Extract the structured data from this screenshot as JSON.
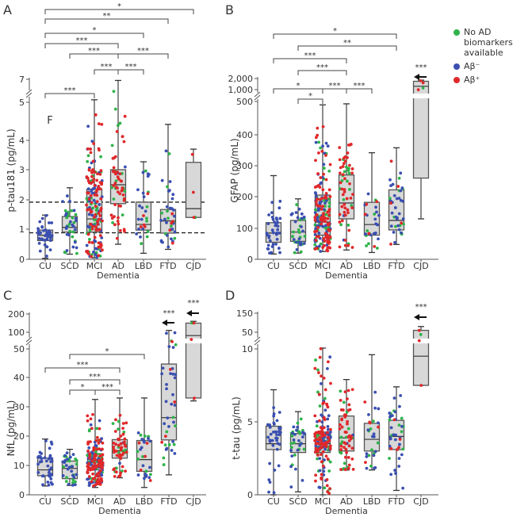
{
  "colors": {
    "no_biomarker": "#2fb34a",
    "abeta_neg": "#3a4fb0",
    "abeta_pos": "#e0282a",
    "box_fill": "#d8d8d8",
    "box_stroke": "#555555"
  },
  "legend": {
    "items": [
      {
        "key": "no_biomarker",
        "label_line1": "No AD biomarkers",
        "label_line2": "available"
      },
      {
        "key": "abeta_neg",
        "label_line1": "Aβ⁻",
        "label_line2": ""
      },
      {
        "key": "abeta_pos",
        "label_line1": "Aβ⁺",
        "label_line2": ""
      }
    ]
  },
  "chart_data": [
    {
      "panel": "A",
      "type": "box",
      "ylabel": "p-tau181 (pg/mL)",
      "xlabel": "Dementia",
      "categories": [
        "CU",
        "SCD",
        "MCI",
        "AD",
        "LBD",
        "FTD",
        "CJD"
      ],
      "yticks": [
        0,
        1,
        2,
        3,
        4,
        5,
        7
      ],
      "ytick_labels": [
        "0",
        "1",
        "2",
        "3",
        "4",
        "5",
        "7"
      ],
      "axis_break": [
        5.5,
        6.5
      ],
      "annotation_text": "F",
      "reference_lines": [
        1.92,
        0.88
      ],
      "boxes": [
        {
          "min": 0.03,
          "q1": 0.62,
          "median": 0.8,
          "q3": 0.97,
          "max": 1.48
        },
        {
          "min": 0.17,
          "q1": 0.9,
          "median": 1.06,
          "q3": 1.43,
          "max": 2.4
        },
        {
          "min": 0.05,
          "q1": 0.9,
          "median": 1.35,
          "q3": 2.35,
          "max": 5.22
        },
        {
          "min": 0.5,
          "q1": 1.87,
          "median": 2.5,
          "q3": 3.0,
          "max": 6.9
        },
        {
          "min": 0.2,
          "q1": 0.97,
          "median": 1.16,
          "q3": 1.92,
          "max": 3.27
        },
        {
          "min": 0.33,
          "q1": 0.87,
          "median": 1.28,
          "q3": 1.67,
          "max": 4.42
        },
        {
          "min": 1.4,
          "q1": 1.4,
          "median": 1.7,
          "q3": 3.25,
          "max": 3.7
        }
      ],
      "brackets": [
        {
          "from": "CU",
          "to": "CJD",
          "label": "*"
        },
        {
          "from": "CU",
          "to": "FTD",
          "label": "**"
        },
        {
          "from": "CU",
          "to": "LBD",
          "label": "*"
        },
        {
          "from": "CU",
          "to": "AD",
          "label": "***"
        },
        {
          "from": "SCD",
          "to": "AD",
          "label": "***"
        },
        {
          "from": "AD",
          "to": "FTD",
          "label": "***"
        },
        {
          "from": "MCI",
          "to": "AD",
          "label": "***"
        },
        {
          "from": "AD",
          "to": "LBD",
          "label": "***"
        },
        {
          "from": "CU",
          "to": "MCI",
          "label": "***"
        }
      ],
      "outlier_marks": []
    },
    {
      "panel": "B",
      "type": "box",
      "ylabel": "GFAP (pg/mL)",
      "xlabel": "Dementia",
      "categories": [
        "CU",
        "SCD",
        "MCI",
        "AD",
        "LBD",
        "FTD",
        "CJD"
      ],
      "yticks": [
        0,
        100,
        200,
        300,
        400,
        500,
        1000,
        2000
      ],
      "ytick_labels": [
        "0",
        "100",
        "200",
        "300",
        "400",
        "500",
        "1,000",
        "2,000"
      ],
      "axis_break": [
        500,
        1000
      ],
      "boxes": [
        {
          "min": 17,
          "q1": 55,
          "median": 85,
          "q3": 118,
          "max": 268
        },
        {
          "min": 20,
          "q1": 58,
          "median": 88,
          "q3": 125,
          "max": 193
        },
        {
          "min": 25,
          "q1": 78,
          "median": 120,
          "q3": 205,
          "max": 490
        },
        {
          "min": 30,
          "q1": 130,
          "median": 180,
          "q3": 270,
          "max": 493
        },
        {
          "min": 22,
          "q1": 78,
          "median": 112,
          "q3": 182,
          "max": 342
        },
        {
          "min": 48,
          "q1": 95,
          "median": 125,
          "q3": 222,
          "max": 358
        },
        {
          "min": 130,
          "q1": 260,
          "median": 1300,
          "q3": 1750,
          "max": 1850
        }
      ],
      "brackets": [
        {
          "from": "CU",
          "to": "FTD",
          "label": "*"
        },
        {
          "from": "SCD",
          "to": "FTD",
          "label": "**"
        },
        {
          "from": "CU",
          "to": "AD",
          "label": "***"
        },
        {
          "from": "SCD",
          "to": "AD",
          "label": "***"
        },
        {
          "from": "CU",
          "to": "MCI",
          "label": "*"
        },
        {
          "from": "MCI",
          "to": "AD",
          "label": "***"
        },
        {
          "from": "AD",
          "to": "LBD",
          "label": "***"
        },
        {
          "from": "SCD",
          "to": "MCI",
          "label": "*"
        }
      ],
      "outlier_marks": [
        {
          "group": "CJD",
          "label": "***",
          "arrow": "left"
        }
      ]
    },
    {
      "panel": "C",
      "type": "box",
      "ylabel": "NfL (pg/mL)",
      "xlabel": "Dementia",
      "categories": [
        "CU",
        "SCD",
        "MCI",
        "AD",
        "LBD",
        "FTD",
        "CJD"
      ],
      "yticks": [
        0,
        10,
        20,
        30,
        40,
        50,
        100,
        200
      ],
      "ytick_labels": [
        "0",
        "10",
        "20",
        "30",
        "40",
        "50",
        "100",
        "200"
      ],
      "axis_break": [
        50,
        100
      ],
      "boxes": [
        {
          "min": 3,
          "q1": 6.5,
          "median": 8.5,
          "q3": 12.5,
          "max": 19
        },
        {
          "min": 3.2,
          "q1": 5.5,
          "median": 9,
          "q3": 11.5,
          "max": 15.5
        },
        {
          "min": 2.5,
          "q1": 8.5,
          "median": 11,
          "q3": 14,
          "max": 32.5
        },
        {
          "min": 5.8,
          "q1": 12.5,
          "median": 15,
          "q3": 18.8,
          "max": 33
        },
        {
          "min": 2.5,
          "q1": 8,
          "median": 12,
          "q3": 18.5,
          "max": 33
        },
        {
          "min": 6.8,
          "q1": 18.7,
          "median": 26.3,
          "q3": 44.7,
          "max": 110
        },
        {
          "min": 32,
          "q1": 33,
          "median": 90,
          "q3": 150,
          "max": 160
        }
      ],
      "brackets": [
        {
          "from": "SCD",
          "to": "LBD",
          "label": "*"
        },
        {
          "from": "CU",
          "to": "AD",
          "label": "***"
        },
        {
          "from": "SCD",
          "to": "AD",
          "label": "***"
        },
        {
          "from": "SCD",
          "to": "MCI",
          "label": "*"
        },
        {
          "from": "MCI",
          "to": "AD",
          "label": "***"
        }
      ],
      "outlier_marks": [
        {
          "group": "FTD",
          "label": "***",
          "arrow": "left"
        },
        {
          "group": "CJD",
          "label": "***",
          "arrow": "left"
        }
      ]
    },
    {
      "panel": "D",
      "type": "box",
      "ylabel": "t-tau (pg/mL)",
      "xlabel": "Dementia",
      "categories": [
        "CU",
        "SCD",
        "MCI",
        "AD",
        "LBD",
        "FTD",
        "CJD"
      ],
      "yticks": [
        0,
        5,
        10,
        50,
        150
      ],
      "ytick_labels": [
        "0",
        "5",
        "10",
        "50",
        "150"
      ],
      "axis_break": [
        10,
        50
      ],
      "boxes": [
        {
          "min": 0,
          "q1": 3.1,
          "median": 3.5,
          "q3": 4.7,
          "max": 7.2
        },
        {
          "min": 0.2,
          "q1": 2.9,
          "median": 3.5,
          "q3": 4.2,
          "max": 5.7
        },
        {
          "min": 0,
          "q1": 2.9,
          "median": 3.5,
          "q3": 4.3,
          "max": 12
        },
        {
          "min": 1.7,
          "q1": 3.0,
          "median": 3.9,
          "q3": 5.4,
          "max": 7.9
        },
        {
          "min": 1.7,
          "q1": 3.0,
          "median": 3.8,
          "q3": 4.9,
          "max": 9.6
        },
        {
          "min": 0.3,
          "q1": 3.1,
          "median": 4.0,
          "q3": 5.1,
          "max": 7.4
        },
        {
          "min": 7.5,
          "q1": 7.5,
          "median": 9.5,
          "q3": 60,
          "max": 80
        }
      ],
      "brackets": [],
      "outlier_marks": [
        {
          "group": "CJD",
          "label": "***",
          "arrow": "left"
        }
      ]
    }
  ],
  "group_point_counts": {
    "CU": {
      "no_biomarker": 0,
      "abeta_neg": 40,
      "abeta_pos": 0
    },
    "SCD": {
      "no_biomarker": 18,
      "abeta_neg": 20,
      "abeta_pos": 0
    },
    "MCI": {
      "no_biomarker": 40,
      "abeta_neg": 60,
      "abeta_pos": 90
    },
    "AD": {
      "no_biomarker": 16,
      "abeta_neg": 2,
      "abeta_pos": 45
    },
    "LBD": {
      "no_biomarker": 8,
      "abeta_neg": 16,
      "abeta_pos": 5
    },
    "FTD": {
      "no_biomarker": 10,
      "abeta_neg": 26,
      "abeta_pos": 5
    },
    "CJD": {
      "no_biomarker": 1,
      "abeta_neg": 0,
      "abeta_pos": 3
    }
  }
}
